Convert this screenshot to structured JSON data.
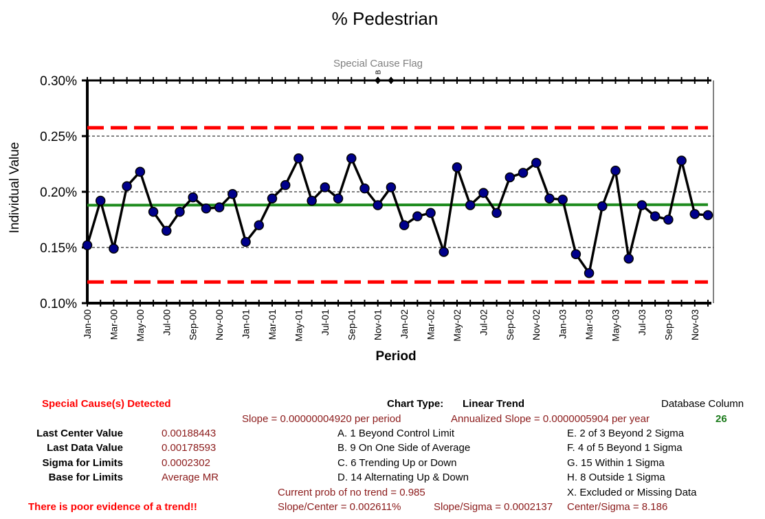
{
  "chart_data": {
    "type": "line",
    "title": "% Pedestrian",
    "xlabel": "Period",
    "ylabel": "Individual Value",
    "flag_label": "Special Cause Flag",
    "flag_marker_text": "B",
    "ylim": [
      0.001,
      0.003
    ],
    "y_ticks": [
      "0.10%",
      "0.15%",
      "0.20%",
      "0.25%",
      "0.30%"
    ],
    "y_tick_values": [
      0.001,
      0.0015,
      0.002,
      0.0025,
      0.003
    ],
    "x": [
      "Jan-00",
      "Feb-00",
      "Mar-00",
      "Apr-00",
      "May-00",
      "Jun-00",
      "Jul-00",
      "Aug-00",
      "Sep-00",
      "Oct-00",
      "Nov-00",
      "Dec-00",
      "Jan-01",
      "Feb-01",
      "Mar-01",
      "Apr-01",
      "May-01",
      "Jun-01",
      "Jul-01",
      "Aug-01",
      "Sep-01",
      "Oct-01",
      "Nov-01",
      "Dec-01",
      "Jan-02",
      "Feb-02",
      "Mar-02",
      "Apr-02",
      "May-02",
      "Jun-02",
      "Jul-02",
      "Aug-02",
      "Sep-02",
      "Oct-02",
      "Nov-02",
      "Dec-02",
      "Jan-03",
      "Feb-03",
      "Mar-03",
      "Apr-03",
      "May-03",
      "Jun-03",
      "Jul-03",
      "Aug-03",
      "Sep-03",
      "Oct-03",
      "Nov-03",
      "Dec-03"
    ],
    "x_tick_labels": [
      "Jan-00",
      "Mar-00",
      "May-00",
      "Jul-00",
      "Sep-00",
      "Nov-00",
      "Jan-01",
      "Mar-01",
      "May-01",
      "Jul-01",
      "Sep-01",
      "Nov-01",
      "Jan-02",
      "Mar-02",
      "May-02",
      "Jul-02",
      "Sep-02",
      "Nov-02",
      "Jan-03",
      "Mar-03",
      "May-03",
      "Jul-03",
      "Sep-03",
      "Nov-03"
    ],
    "series": [
      {
        "values": [
          0.00152,
          0.00192,
          0.00149,
          0.00205,
          0.00218,
          0.00182,
          0.00165,
          0.00182,
          0.00195,
          0.00185,
          0.00186,
          0.00198,
          0.00155,
          0.0017,
          0.00194,
          0.00206,
          0.0023,
          0.00192,
          0.00204,
          0.00194,
          0.0023,
          0.00203,
          0.00188,
          0.00204,
          0.0017,
          0.00178,
          0.00181,
          0.00146,
          0.00222,
          0.00188,
          0.00199,
          0.00181,
          0.00213,
          0.00217,
          0.00226,
          0.00194,
          0.00193,
          0.00144,
          0.00127,
          0.00187,
          0.00219,
          0.0014,
          0.00188,
          0.00178,
          0.00175,
          0.00228,
          0.0018,
          0.00179
        ]
      }
    ],
    "center_line": {
      "start": 0.00188,
      "end": 0.00188443
    },
    "upper_limit": {
      "start": 0.002575,
      "end": 0.002575
    },
    "lower_limit": {
      "start": 0.00119,
      "end": 0.00119
    },
    "flagged_points": [
      22,
      23
    ],
    "colors": {
      "series": "#000000",
      "marker": "#00008b",
      "center": "#1f8c1f",
      "limits": "#ff0000",
      "grid": "#000000"
    },
    "grid": true
  },
  "summary": {
    "special_cause": "Special Cause(s) Detected",
    "chart_type_label": "Chart Type:",
    "chart_type_value": "Linear Trend",
    "database_column_label": "Database Column",
    "database_column_value": "26",
    "slope": "Slope = 0.00000004920 per period",
    "annualized_slope": "Annualized Slope = 0.0000005904 per year",
    "stats": [
      {
        "label": "Last Center Value",
        "value": "0.00188443"
      },
      {
        "label": "Last Data Value",
        "value": "0.00178593"
      },
      {
        "label": "Sigma for Limits",
        "value": "0.0002302"
      },
      {
        "label": "Base for Limits",
        "value": "Average MR"
      }
    ],
    "rules_left": [
      "A. 1 Beyond Control Limit",
      "B. 9 On One Side of Average",
      "C. 6 Trending Up or Down",
      "D. 14 Alternating  Up & Down"
    ],
    "rules_right": [
      "E. 2 of 3 Beyond 2 Sigma",
      "F. 4 of 5 Beyond 1 Sigma",
      "G. 15 Within 1 Sigma",
      "H. 8 Outside 1 Sigma",
      "X. Excluded or Missing Data"
    ],
    "prob_no_trend": "Current prob of no trend = 0.985",
    "slope_center": "Slope/Center = 0.002611%",
    "slope_sigma": "Slope/Sigma = 0.0002137",
    "center_sigma": "Center/Sigma = 8.186",
    "trend_verdict": "There is poor evidence of a trend!!"
  }
}
